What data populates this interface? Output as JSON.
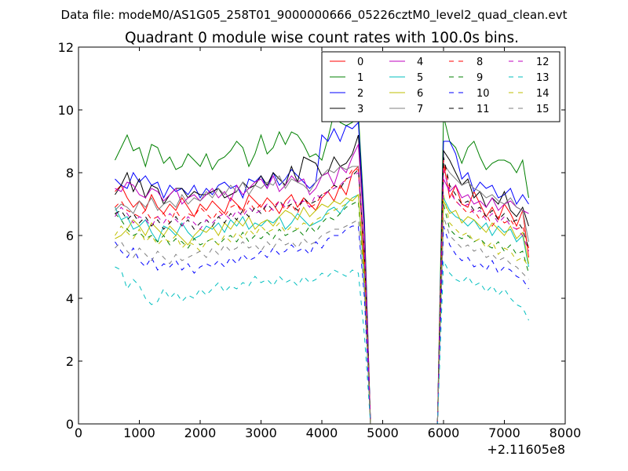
{
  "chart_data": {
    "type": "line",
    "suptitle": "Data file: modeM0/AS1G05_258T01_9000000666_05226cztM0_level2_quad_clean.evt",
    "title": "Quadrant 0 module wise count rates with 100.0s bins.",
    "xlabel": "",
    "ylabel": "",
    "x_offset_label": "+2.11605e8",
    "xlim": [
      0,
      8000
    ],
    "ylim": [
      0,
      12
    ],
    "xticks": [
      "0",
      "1000",
      "2000",
      "3000",
      "4000",
      "5000",
      "6000",
      "7000",
      "8000"
    ],
    "yticks": [
      "0",
      "2",
      "4",
      "6",
      "8",
      "10",
      "12"
    ],
    "grid": false,
    "legend": {
      "position": "top-right",
      "columns": 4
    },
    "x": [
      600,
      700,
      800,
      900,
      1000,
      1100,
      1200,
      1300,
      1400,
      1500,
      1600,
      1700,
      1800,
      1900,
      2000,
      2100,
      2200,
      2300,
      2400,
      2500,
      2600,
      2700,
      2800,
      2900,
      3000,
      3100,
      3200,
      3300,
      3400,
      3500,
      3600,
      3700,
      3800,
      3900,
      4000,
      4100,
      4200,
      4300,
      4400,
      4500,
      4600,
      4700,
      4800,
      4900,
      5000,
      5100,
      5200,
      5300,
      5400,
      5500,
      5600,
      5700,
      5800,
      5900,
      6000,
      6100,
      6200,
      6300,
      6400,
      6500,
      6600,
      6700,
      6800,
      6900,
      7000,
      7100,
      7200,
      7300,
      7400
    ],
    "series": [
      {
        "name": "0",
        "color": "#ff0000",
        "dash": "solid",
        "values": [
          7.4,
          7.6,
          7.2,
          6.9,
          7.1,
          6.8,
          7.3,
          6.9,
          6.7,
          7.0,
          6.8,
          7.2,
          6.9,
          6.6,
          7.0,
          6.8,
          7.1,
          6.9,
          6.7,
          7.2,
          7.0,
          6.8,
          7.3,
          7.1,
          6.9,
          7.2,
          7.0,
          6.7,
          7.1,
          7.3,
          6.9,
          7.2,
          7.0,
          6.8,
          7.2,
          7.4,
          7.1,
          7.6,
          7.3,
          8.0,
          8.2,
          5.0,
          0.0,
          0,
          0,
          0,
          0,
          0,
          0,
          0,
          0,
          0,
          0,
          0,
          8.3,
          7.2,
          7.6,
          7.0,
          6.9,
          7.4,
          7.0,
          6.6,
          6.9,
          6.5,
          7.0,
          6.7,
          6.3,
          6.8,
          5.3
        ]
      },
      {
        "name": "1",
        "color": "#008000",
        "dash": "solid",
        "values": [
          8.4,
          8.8,
          9.2,
          8.7,
          8.8,
          8.2,
          8.9,
          8.8,
          8.3,
          8.5,
          8.1,
          8.2,
          8.6,
          8.4,
          8.2,
          8.6,
          8.1,
          8.4,
          8.5,
          8.7,
          9.0,
          8.8,
          8.2,
          8.6,
          9.2,
          8.6,
          8.8,
          9.3,
          8.9,
          9.3,
          9.2,
          8.9,
          8.5,
          8.6,
          8.4,
          9.1,
          9.9,
          9.6,
          9.5,
          9.6,
          9.9,
          6.5,
          0.0,
          0,
          0,
          0,
          0,
          0,
          0,
          0,
          0,
          0,
          0,
          0,
          9.8,
          9.0,
          8.8,
          8.3,
          8.8,
          9.0,
          8.5,
          8.1,
          8.3,
          8.4,
          8.4,
          8.3,
          8.0,
          8.4,
          7.2
        ]
      },
      {
        "name": "2",
        "color": "#0000ff",
        "dash": "solid",
        "values": [
          7.8,
          7.6,
          7.5,
          8.0,
          7.7,
          7.9,
          7.6,
          7.7,
          7.2,
          7.6,
          7.4,
          7.5,
          7.3,
          7.6,
          7.2,
          7.5,
          7.3,
          7.6,
          7.7,
          7.5,
          7.6,
          7.2,
          7.8,
          7.7,
          7.9,
          7.5,
          8.0,
          7.6,
          7.8,
          8.1,
          7.9,
          7.7,
          7.5,
          7.7,
          9.2,
          9.0,
          9.4,
          9.0,
          9.5,
          9.4,
          9.6,
          6.3,
          0.0,
          0,
          0,
          0,
          0,
          0,
          0,
          0,
          0,
          0,
          0,
          0,
          9.0,
          9.0,
          8.6,
          7.8,
          8.0,
          7.4,
          7.7,
          7.5,
          7.6,
          7.2,
          7.3,
          7.5,
          7.0,
          7.3,
          7.0
        ]
      },
      {
        "name": "3",
        "color": "#000000",
        "dash": "solid",
        "values": [
          7.3,
          7.6,
          8.0,
          7.4,
          7.8,
          7.2,
          7.6,
          7.5,
          7.0,
          7.3,
          7.5,
          7.5,
          7.2,
          7.4,
          7.3,
          7.3,
          7.4,
          7.5,
          7.2,
          7.3,
          7.4,
          7.7,
          7.5,
          7.6,
          7.9,
          7.6,
          8.0,
          7.8,
          7.6,
          8.2,
          7.7,
          8.5,
          8.4,
          8.3,
          7.9,
          8.0,
          8.5,
          8.2,
          8.3,
          8.6,
          9.2,
          6.0,
          0.0,
          0,
          0,
          0,
          0,
          0,
          0,
          0,
          0,
          0,
          0,
          0,
          8.7,
          8.4,
          8.0,
          7.6,
          7.8,
          7.2,
          7.4,
          6.9,
          7.2,
          7.0,
          7.4,
          6.8,
          6.6,
          6.9,
          6.3
        ]
      },
      {
        "name": "4",
        "color": "#bf00bf",
        "dash": "solid",
        "values": [
          7.5,
          7.4,
          7.7,
          7.6,
          7.3,
          7.2,
          7.5,
          7.4,
          7.1,
          7.3,
          7.5,
          7.0,
          7.2,
          7.3,
          7.1,
          7.3,
          7.5,
          7.2,
          7.4,
          7.1,
          7.6,
          7.3,
          7.5,
          7.7,
          7.8,
          7.5,
          7.9,
          7.4,
          7.6,
          7.9,
          7.7,
          7.8,
          7.3,
          7.5,
          7.9,
          8.0,
          7.6,
          8.2,
          8.0,
          8.5,
          8.9,
          6.0,
          0.0,
          0,
          0,
          0,
          0,
          0,
          0,
          0,
          0,
          0,
          0,
          0,
          7.8,
          7.4,
          7.6,
          7.2,
          7.3,
          7.0,
          7.1,
          6.9,
          7.2,
          6.8,
          7.0,
          7.1,
          6.9,
          6.8,
          6.7
        ]
      },
      {
        "name": "5",
        "color": "#00bfbf",
        "dash": "solid",
        "values": [
          6.9,
          6.5,
          6.6,
          6.2,
          6.3,
          6.5,
          6.1,
          5.8,
          6.3,
          6.2,
          6.0,
          6.4,
          6.1,
          5.9,
          6.0,
          6.3,
          6.2,
          6.4,
          6.1,
          6.5,
          6.3,
          6.6,
          6.2,
          6.4,
          6.3,
          6.5,
          6.4,
          6.6,
          6.2,
          6.4,
          6.7,
          6.5,
          6.3,
          6.4,
          6.5,
          6.8,
          6.9,
          6.7,
          7.0,
          7.2,
          7.3,
          4.5,
          0.0,
          0,
          0,
          0,
          0,
          0,
          0,
          0,
          0,
          0,
          0,
          0,
          7.2,
          6.8,
          6.6,
          6.5,
          6.3,
          6.5,
          6.2,
          6.4,
          6.0,
          6.3,
          6.1,
          6.2,
          5.8,
          6.0,
          5.0
        ]
      },
      {
        "name": "6",
        "color": "#bfbf00",
        "dash": "solid",
        "values": [
          5.9,
          6.0,
          6.2,
          6.5,
          6.3,
          6.0,
          6.4,
          6.2,
          6.0,
          6.3,
          6.1,
          5.9,
          5.7,
          6.0,
          6.2,
          6.1,
          6.3,
          6.0,
          6.4,
          6.2,
          6.5,
          6.3,
          6.6,
          6.2,
          6.4,
          6.5,
          6.3,
          6.6,
          6.8,
          6.7,
          6.5,
          6.9,
          6.6,
          6.8,
          7.0,
          6.9,
          7.1,
          7.0,
          7.2,
          7.1,
          7.3,
          4.8,
          0.0,
          0,
          0,
          0,
          0,
          0,
          0,
          0,
          0,
          0,
          0,
          0,
          7.1,
          6.7,
          6.8,
          6.4,
          6.6,
          6.5,
          6.3,
          6.1,
          6.4,
          6.2,
          6.0,
          6.3,
          5.9,
          6.1,
          5.1
        ]
      },
      {
        "name": "7",
        "color": "#808080",
        "dash": "solid",
        "values": [
          6.8,
          7.0,
          6.9,
          6.7,
          7.1,
          6.9,
          7.2,
          6.8,
          7.0,
          7.1,
          6.9,
          7.3,
          7.0,
          7.2,
          7.1,
          7.4,
          7.2,
          7.5,
          7.3,
          7.6,
          7.4,
          7.7,
          7.3,
          7.6,
          7.5,
          7.7,
          7.6,
          7.9,
          7.5,
          7.8,
          7.7,
          7.6,
          7.4,
          7.7,
          7.9,
          8.1,
          8.0,
          8.2,
          8.1,
          8.2,
          8.2,
          5.5,
          0.0,
          0,
          0,
          0,
          0,
          0,
          0,
          0,
          0,
          0,
          0,
          0,
          8.3,
          8.0,
          7.8,
          7.6,
          7.7,
          7.5,
          7.4,
          7.2,
          7.3,
          7.1,
          7.0,
          7.2,
          6.9,
          6.8,
          5.8
        ]
      },
      {
        "name": "8",
        "color": "#ff0000",
        "dash": "dashed",
        "values": [
          6.9,
          7.1,
          6.8,
          6.7,
          6.6,
          6.8,
          6.5,
          6.6,
          6.7,
          6.4,
          6.8,
          6.5,
          6.7,
          6.6,
          6.9,
          6.7,
          6.5,
          6.8,
          6.6,
          6.9,
          7.0,
          6.7,
          7.1,
          6.8,
          7.0,
          6.7,
          6.9,
          7.1,
          6.8,
          7.0,
          6.7,
          7.2,
          6.9,
          7.0,
          7.3,
          7.4,
          7.6,
          7.5,
          7.8,
          8.1,
          8.1,
          5.2,
          0.0,
          0,
          0,
          0,
          0,
          0,
          0,
          0,
          0,
          0,
          0,
          0,
          8.4,
          7.5,
          7.1,
          6.9,
          6.7,
          6.8,
          6.5,
          6.7,
          6.3,
          6.6,
          6.4,
          6.5,
          6.2,
          6.3,
          5.6
        ]
      },
      {
        "name": "9",
        "color": "#008000",
        "dash": "dashed",
        "values": [
          6.7,
          6.5,
          6.2,
          6.0,
          6.1,
          5.9,
          6.0,
          5.8,
          6.0,
          5.7,
          5.9,
          5.8,
          5.6,
          5.9,
          5.7,
          5.8,
          5.9,
          5.7,
          5.9,
          6.0,
          5.8,
          6.1,
          5.8,
          6.0,
          5.9,
          6.1,
          5.9,
          6.2,
          6.0,
          6.1,
          6.2,
          6.0,
          6.3,
          6.1,
          6.4,
          6.6,
          6.5,
          6.7,
          6.9,
          7.0,
          7.1,
          4.5,
          0.0,
          0,
          0,
          0,
          0,
          0,
          0,
          0,
          0,
          0,
          0,
          0,
          7.0,
          6.2,
          6.0,
          5.9,
          6.0,
          5.8,
          5.9,
          5.7,
          5.6,
          5.8,
          5.5,
          5.7,
          5.4,
          5.5,
          4.8
        ]
      },
      {
        "name": "10",
        "color": "#0000ff",
        "dash": "dashed",
        "values": [
          5.8,
          5.5,
          5.3,
          5.6,
          5.2,
          5.0,
          5.3,
          4.9,
          5.1,
          5.0,
          5.2,
          4.9,
          5.1,
          4.8,
          5.0,
          5.1,
          5.0,
          5.2,
          5.0,
          5.3,
          5.1,
          5.4,
          5.2,
          5.3,
          5.5,
          5.3,
          5.6,
          5.4,
          5.5,
          5.7,
          5.5,
          5.6,
          5.4,
          5.8,
          5.6,
          5.9,
          6.0,
          6.0,
          6.2,
          6.3,
          6.3,
          4.0,
          0.0,
          0,
          0,
          0,
          0,
          0,
          0,
          0,
          0,
          0,
          0,
          0,
          6.3,
          5.7,
          5.4,
          5.2,
          5.3,
          5.0,
          5.1,
          4.9,
          5.2,
          4.8,
          5.0,
          4.9,
          4.7,
          4.6,
          4.3
        ]
      },
      {
        "name": "11",
        "color": "#000000",
        "dash": "dashed",
        "values": [
          6.7,
          6.8,
          6.5,
          6.7,
          6.4,
          6.6,
          6.3,
          6.5,
          6.2,
          6.4,
          6.6,
          6.3,
          6.5,
          6.2,
          6.4,
          6.5,
          6.3,
          6.6,
          6.4,
          6.7,
          6.5,
          6.8,
          6.6,
          6.9,
          6.7,
          7.0,
          6.8,
          7.1,
          6.9,
          7.0,
          6.8,
          7.2,
          7.0,
          7.1,
          7.3,
          7.4,
          7.6,
          7.5,
          7.8,
          7.9,
          8.1,
          5.4,
          0.0,
          0,
          0,
          0,
          0,
          0,
          0,
          0,
          0,
          0,
          0,
          0,
          8.5,
          7.6,
          7.3,
          7.0,
          7.1,
          6.8,
          6.9,
          6.6,
          6.8,
          6.5,
          6.7,
          6.4,
          6.5,
          6.2,
          5.6
        ]
      },
      {
        "name": "12",
        "color": "#bf00bf",
        "dash": "dashed",
        "values": [
          6.6,
          6.9,
          6.7,
          6.4,
          6.6,
          6.5,
          6.3,
          6.6,
          6.4,
          6.7,
          6.5,
          6.3,
          6.6,
          6.4,
          6.2,
          6.5,
          6.4,
          6.6,
          6.7,
          6.5,
          6.8,
          6.6,
          6.9,
          6.7,
          6.8,
          7.0,
          6.8,
          7.1,
          6.9,
          7.2,
          7.0,
          7.1,
          6.9,
          7.3,
          7.2,
          7.4,
          7.5,
          7.6,
          7.8,
          7.9,
          8.0,
          5.3,
          0.0,
          0,
          0,
          0,
          0,
          0,
          0,
          0,
          0,
          0,
          0,
          0,
          8.1,
          7.4,
          7.1,
          6.9,
          7.0,
          6.7,
          6.8,
          6.5,
          6.7,
          6.4,
          6.6,
          6.3,
          6.2,
          6.0,
          5.5
        ]
      },
      {
        "name": "13",
        "color": "#00bfbf",
        "dash": "dashed",
        "values": [
          5.0,
          4.9,
          4.3,
          4.6,
          4.4,
          4.0,
          3.8,
          3.9,
          4.3,
          4.0,
          4.2,
          3.9,
          4.1,
          4.0,
          4.3,
          4.1,
          4.3,
          4.5,
          4.2,
          4.4,
          4.3,
          4.5,
          4.4,
          4.7,
          4.5,
          4.6,
          4.4,
          4.7,
          4.5,
          4.6,
          4.4,
          4.7,
          4.5,
          4.6,
          4.8,
          4.7,
          4.9,
          4.8,
          4.7,
          4.9,
          4.8,
          2.8,
          0.0,
          0,
          0,
          0,
          0,
          0,
          0,
          0,
          0,
          0,
          0,
          0,
          5.2,
          4.8,
          4.6,
          4.5,
          4.7,
          4.4,
          4.5,
          4.2,
          4.4,
          4.1,
          4.3,
          4.0,
          3.8,
          3.7,
          3.3
        ]
      },
      {
        "name": "14",
        "color": "#bfbf00",
        "dash": "dashed",
        "values": [
          6.0,
          6.3,
          6.1,
          5.9,
          6.2,
          5.8,
          6.0,
          5.7,
          5.9,
          5.8,
          6.0,
          5.6,
          5.8,
          5.7,
          5.5,
          5.8,
          5.9,
          5.7,
          6.0,
          5.8,
          6.1,
          5.9,
          6.2,
          6.0,
          6.3,
          6.1,
          6.2,
          6.4,
          6.1,
          6.3,
          6.2,
          6.4,
          6.3,
          6.5,
          6.6,
          6.7,
          6.8,
          6.9,
          7.0,
          7.2,
          7.3,
          4.6,
          0.0,
          0,
          0,
          0,
          0,
          0,
          0,
          0,
          0,
          0,
          0,
          0,
          7.3,
          6.4,
          6.2,
          6.0,
          6.1,
          5.8,
          5.9,
          5.6,
          5.8,
          5.4,
          5.6,
          5.5,
          5.2,
          5.3,
          5.0
        ]
      },
      {
        "name": "15",
        "color": "#808080",
        "dash": "dashed",
        "values": [
          5.6,
          5.8,
          5.5,
          5.3,
          5.6,
          5.4,
          5.2,
          5.5,
          5.3,
          5.1,
          5.4,
          5.2,
          5.3,
          5.4,
          5.5,
          5.3,
          5.6,
          5.4,
          5.7,
          5.5,
          5.6,
          5.8,
          5.6,
          5.7,
          5.5,
          5.8,
          5.6,
          5.9,
          5.7,
          5.8,
          5.6,
          5.9,
          5.7,
          5.8,
          6.0,
          6.1,
          6.2,
          6.2,
          6.3,
          6.4,
          6.5,
          4.2,
          0.0,
          0,
          0,
          0,
          0,
          0,
          0,
          0,
          0,
          0,
          0,
          0,
          6.6,
          6.0,
          5.8,
          5.6,
          5.7,
          5.5,
          5.6,
          5.3,
          5.4,
          5.2,
          5.3,
          5.1,
          5.0,
          4.8,
          4.6
        ]
      }
    ]
  }
}
